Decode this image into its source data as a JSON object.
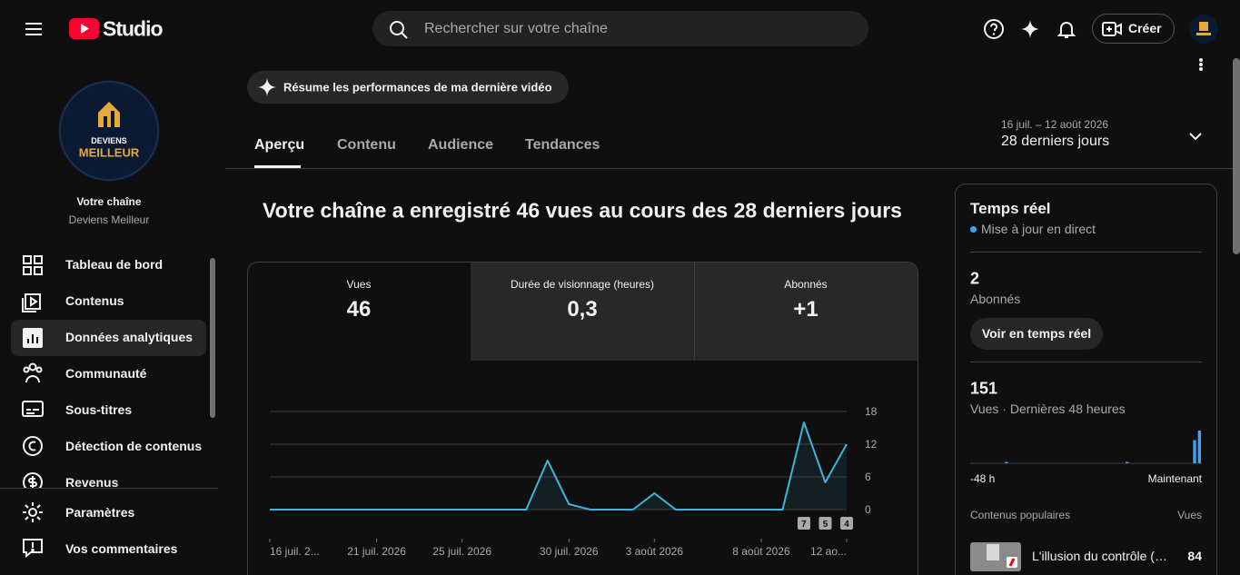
{
  "header": {
    "logo": "Studio",
    "search_placeholder": "Rechercher sur votre chaîne",
    "create": "Créer"
  },
  "sidebar": {
    "logo_line1": "DEVIENS",
    "logo_line2": "MEILLEUR",
    "channel_label": "Votre chaîne",
    "channel_name": "Deviens Meilleur",
    "nav": [
      "Tableau de bord",
      "Contenus",
      "Données analytiques",
      "Communauté",
      "Sous-titres",
      "Détection de contenus",
      "Revenus"
    ],
    "bottom": [
      "Paramètres",
      "Vos commentaires"
    ]
  },
  "summary_button": "Résume les performances de ma dernière vidéo",
  "tabs": [
    "Aperçu",
    "Contenu",
    "Audience",
    "Tendances"
  ],
  "date_range": {
    "dates": "16 juil. – 12 août 2026",
    "label": "28 derniers jours"
  },
  "headline": "Votre chaîne a enregistré 46 vues au cours des 28 derniers jours",
  "metrics": [
    {
      "label": "Vues",
      "value": "46"
    },
    {
      "label": "Durée de visionnage (heures)",
      "value": "0,3"
    },
    {
      "label": "Abonnés",
      "value": "+1"
    }
  ],
  "chart_data": {
    "type": "line",
    "categories": [
      "16 juil. 2...",
      null,
      null,
      null,
      null,
      "21 juil. 2026",
      null,
      null,
      null,
      "25 juil. 2026",
      null,
      null,
      null,
      null,
      "30 juil. 2026",
      null,
      null,
      null,
      "3 août 2026",
      null,
      null,
      null,
      null,
      "8 août 2026",
      null,
      null,
      null,
      "12 ao..."
    ],
    "values": [
      0,
      0,
      0,
      0,
      0,
      0,
      0,
      0,
      0,
      0,
      0,
      0,
      0,
      9,
      1,
      0,
      0,
      0,
      3,
      0,
      0,
      0,
      0,
      0,
      0,
      16,
      5,
      12
    ],
    "color": "#41b4d9",
    "ylim": [
      0,
      18
    ],
    "yticks": [
      0,
      6,
      12,
      18
    ],
    "grid": true,
    "annotations": [
      "7",
      "5",
      "4"
    ]
  },
  "realtime": {
    "title": "Temps réel",
    "live": "Mise à jour en direct",
    "subscribers": "2",
    "subscribers_label": "Abonnés",
    "button": "Voir en temps réel",
    "views": "151",
    "views_label": "Vues · Dernières 48 heures",
    "bars": [
      0,
      0,
      0,
      0,
      0,
      0,
      0,
      3,
      0,
      0,
      0,
      0,
      0,
      0,
      0,
      0,
      0,
      0,
      0,
      0,
      0,
      0,
      0,
      0,
      0,
      0,
      0,
      0,
      0,
      0,
      0,
      0,
      3,
      0,
      0,
      0,
      0,
      0,
      0,
      0,
      0,
      0,
      0,
      0,
      0,
      0,
      60,
      85
    ],
    "bars_color": "#3ea6ff",
    "start_label": "-48 h",
    "end_label": "Maintenant",
    "popular_label": "Contenus populaires",
    "popular_views_label": "Vues",
    "top_video": {
      "title": "L'illusion du contrôle (…",
      "views": "84"
    }
  }
}
